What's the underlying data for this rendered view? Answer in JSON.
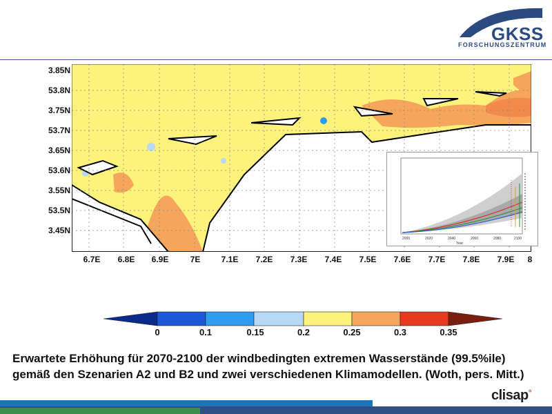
{
  "logo": {
    "name": "GKSS",
    "subtitle": "FORSCHUNGSZENTRUM"
  },
  "map": {
    "y_labels": [
      "3.85N",
      "53.8N",
      "3.75N",
      "53.7N",
      "3.65N",
      "53.6N",
      "3.55N",
      "53.5N",
      "3.45N"
    ],
    "x_labels": [
      "6.7E",
      "6.8E",
      "6.9E",
      "7E",
      "7.1E",
      "7.2E",
      "7.3E",
      "7.4E",
      "7.5E",
      "7.6E",
      "7.7E",
      "7.8E",
      "7.9E",
      "8"
    ],
    "colors": {
      "land": "#ffffff",
      "sea": "#fdf27c",
      "high": "#f6a65a"
    }
  },
  "colorbar": {
    "labels": [
      "0",
      "0.1",
      "0.15",
      "0.2",
      "0.25",
      "0.3",
      "0.35"
    ],
    "colors": [
      "#0b2a8a",
      "#1b57d6",
      "#2f9cf0",
      "#b7d8f6",
      "#fdf27c",
      "#f6a65a",
      "#e6391e",
      "#7a1e12"
    ]
  },
  "inset": {
    "years": [
      "2000",
      "2020",
      "2040",
      "2060",
      "2080",
      "2100"
    ],
    "xlabel": "Year"
  },
  "caption": "Erwartete Erhöhung für 2070-2100 der windbedingten extremen Wasserstände (99.5%ile) gemäß den Szenarien A2 und B2 und zwei verschiedenen Klimamodellen. (Woth, pers. Mitt.)",
  "footer": {
    "brand": "clisap"
  }
}
